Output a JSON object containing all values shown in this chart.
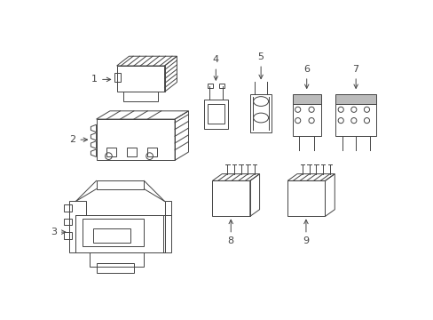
{
  "bg_color": "#ffffff",
  "line_color": "#444444",
  "light_gray": "#bbbbbb",
  "fig_width": 4.89,
  "fig_height": 3.6,
  "dpi": 100
}
